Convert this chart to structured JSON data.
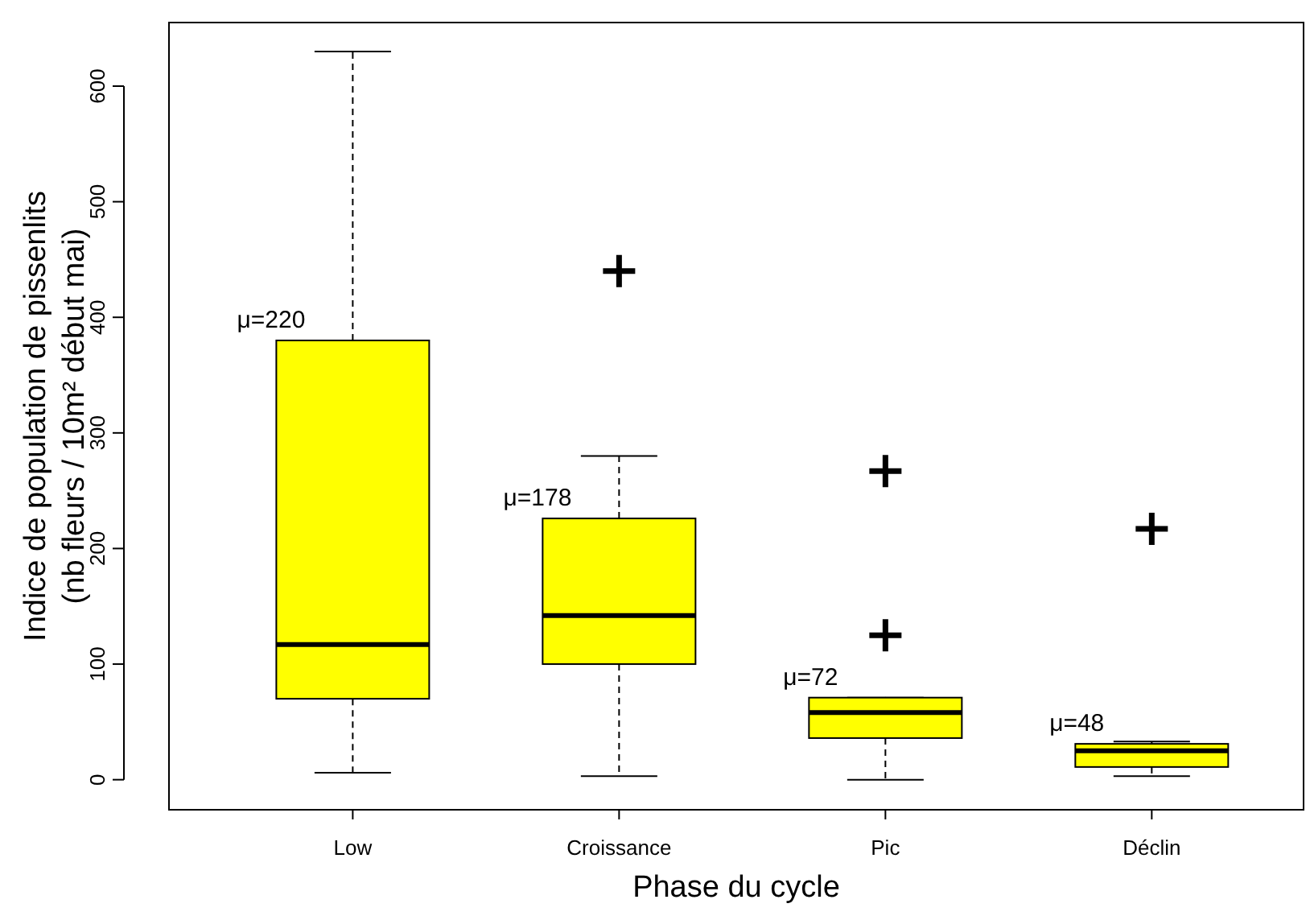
{
  "chart_data": {
    "type": "box",
    "xlabel": "Phase du cycle",
    "ylabel": "Indice de population de pissenlits\n(nb fleurs / 10m² début mai)",
    "categories": [
      "Low",
      "Croissance",
      "Pic",
      "Déclin"
    ],
    "color": "#ffff00",
    "marker": "cross",
    "grid": false,
    "ylim": [
      -26,
      655
    ],
    "yticks": [
      0,
      100,
      200,
      300,
      400,
      500,
      600
    ],
    "boxes": [
      {
        "low": 6,
        "q1": 70,
        "median": 117,
        "q3": 380,
        "high": 630
      },
      {
        "low": 3,
        "q1": 100,
        "median": 142,
        "q3": 226,
        "high": 280,
        "outliers": [
          440
        ]
      },
      {
        "low": 0,
        "q1": 36,
        "median": 58,
        "q3": 71,
        "high": 71,
        "outliers": [
          267,
          125
        ]
      },
      {
        "low": 3,
        "q1": 11,
        "median": 25,
        "q3": 31,
        "high": 33,
        "outliers": [
          217
        ]
      }
    ],
    "annotations": [
      "μ=220",
      "μ=178",
      "μ=72",
      "μ=48"
    ]
  }
}
